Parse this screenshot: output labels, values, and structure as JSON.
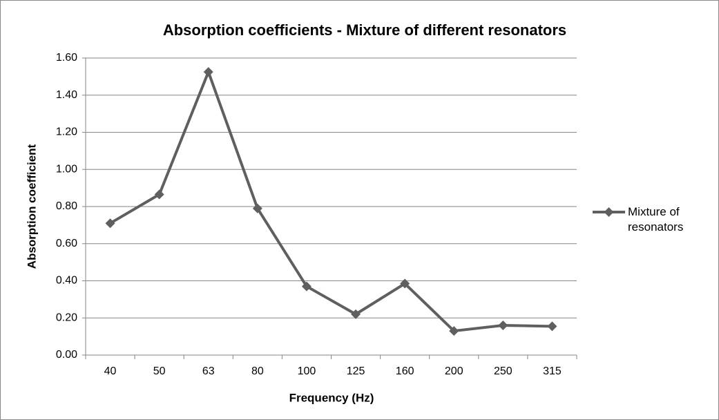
{
  "chart_data": {
    "type": "line",
    "title": "Absorption coefficients - Mixture of different resonators",
    "xlabel": "Frequency (Hz)",
    "ylabel": "Absorption coefficient",
    "categories": [
      "40",
      "50",
      "63",
      "80",
      "100",
      "125",
      "160",
      "200",
      "250",
      "315"
    ],
    "series": [
      {
        "name": "Mixture of resonators",
        "color": "#5f5f5f",
        "values": [
          0.71,
          0.865,
          1.525,
          0.79,
          0.37,
          0.22,
          0.385,
          0.13,
          0.16,
          0.155
        ]
      }
    ],
    "ylim": [
      0,
      1.6
    ],
    "yticks": [
      {
        "value": 0,
        "label": "0.00"
      },
      {
        "value": 0.2,
        "label": "0.20"
      },
      {
        "value": 0.4,
        "label": "0.40"
      },
      {
        "value": 0.6,
        "label": "0.60"
      },
      {
        "value": 0.8,
        "label": "0.80"
      },
      {
        "value": 1.0,
        "label": "1.00"
      },
      {
        "value": 1.2,
        "label": "1.20"
      },
      {
        "value": 1.4,
        "label": "1.40"
      },
      {
        "value": 1.6,
        "label": "1.60"
      }
    ],
    "grid": true,
    "legend": "right"
  }
}
